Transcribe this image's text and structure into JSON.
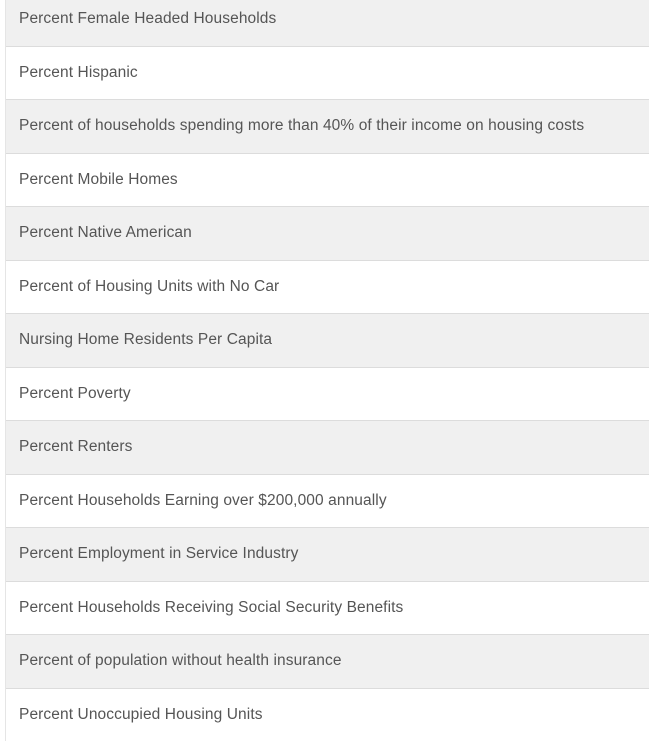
{
  "list": {
    "items": [
      "Percent Female Headed Households",
      "Percent Hispanic",
      "Percent of households spending more than 40% of their income on housing costs",
      "Percent Mobile Homes",
      "Percent Native American",
      "Percent of Housing Units with No Car",
      "Nursing Home Residents Per Capita",
      "Percent Poverty",
      "Percent Renters",
      "Percent Households Earning over $200,000 annually",
      "Percent Employment in Service Industry",
      "Percent Households Receiving Social Security Benefits",
      "Percent of population without health insurance",
      "Percent Unoccupied Housing Units"
    ]
  },
  "colors": {
    "row_stripe_bg": "#f0f0f0",
    "row_bg": "#ffffff",
    "row_border": "#dcdcdc",
    "container_left_border": "#e5e5e5",
    "text": "#555555",
    "page_bg": "#ffffff"
  }
}
